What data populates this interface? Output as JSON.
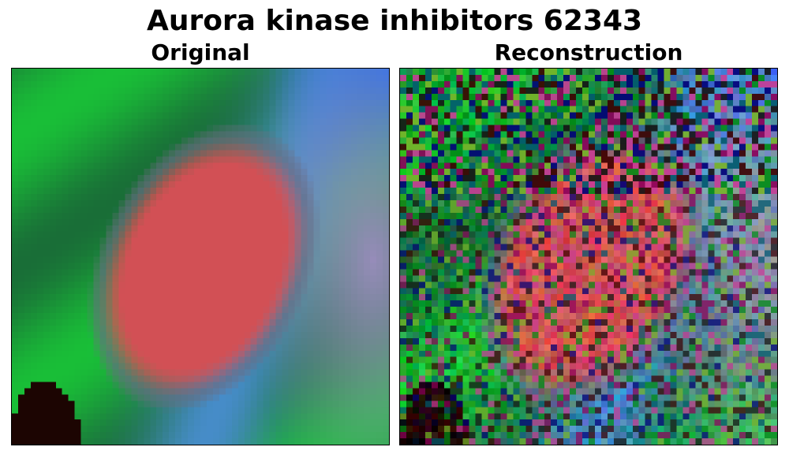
{
  "figure": {
    "title": "Aurora kinase inhibitors 62343",
    "panels": [
      {
        "label": "Original",
        "content": "blurred multichannel cell micrograph: green cytoskeleton background, reddish oval nucleus, blue/cyan edge highlights, dark blob lower-left"
      },
      {
        "label": "Reconstruction",
        "content": "noisy pixelated reconstruction with colored speckle noise, reddish central region, green lower area"
      }
    ]
  },
  "colors": {
    "green": "#1fb33a",
    "nucleus": "#d94a48",
    "blue": "#2a7fe0",
    "dark": "#1a0000",
    "lavender": "#9b8fb8"
  }
}
